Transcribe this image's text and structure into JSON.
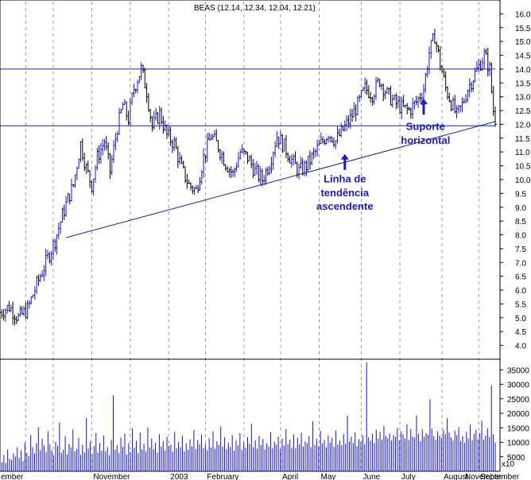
{
  "chart_data": {
    "type": "bar",
    "title": "BEAS (12.14, 12.34, 12.04, 12.21)",
    "price_axis": {
      "ylim": [
        3.5,
        16.5
      ],
      "tick_labels": [
        "4.0",
        "4.5",
        "5.0",
        "5.5",
        "6.0",
        "6.5",
        "7.0",
        "7.5",
        "8.0",
        "8.5",
        "9.0",
        "9.5",
        "10.0",
        "10.5",
        "11.0",
        "11.5",
        "12.0",
        "12.5",
        "13.0",
        "13.5",
        "14.0",
        "14.5",
        "15.0",
        "15.5",
        "16.0"
      ]
    },
    "volume_axis": {
      "ylim": [
        0,
        37000
      ],
      "tick_labels": [
        "5000",
        "10000",
        "15000",
        "20000",
        "25000",
        "30000",
        "35000"
      ],
      "multiplier_label": "x10"
    },
    "x_axis": {
      "xlim": [
        -6,
        264
      ],
      "month_labels": [
        {
          "x": -6,
          "label": "ember"
        },
        {
          "x": 44,
          "label": "November"
        },
        {
          "x": 86,
          "label": "2003"
        },
        {
          "x": 106,
          "label": "February"
        },
        {
          "x": 147,
          "label": "April"
        },
        {
          "x": 168,
          "label": "May"
        },
        {
          "x": 191,
          "label": "June"
        },
        {
          "x": 212,
          "label": "July"
        },
        {
          "x": 235,
          "label": "August"
        },
        {
          "x": 255,
          "label": "September"
        }
      ],
      "right_label": "November",
      "grid_x": [
        8,
        23,
        44,
        65,
        86,
        106,
        127,
        147,
        168,
        191,
        212,
        235,
        255
      ]
    },
    "price_path": [
      [
        -6,
        5.2
      ],
      [
        -1,
        5.4
      ],
      [
        4,
        5.0
      ],
      [
        9,
        5.3
      ],
      [
        14,
        6.2
      ],
      [
        19,
        7.0
      ],
      [
        24,
        7.8
      ],
      [
        28,
        8.7
      ],
      [
        31,
        9.3
      ],
      [
        34,
        9.8
      ],
      [
        38,
        11.3
      ],
      [
        41,
        10.4
      ],
      [
        44,
        9.8
      ],
      [
        47,
        10.8
      ],
      [
        51,
        11.4
      ],
      [
        54,
        10.3
      ],
      [
        58,
        11.9
      ],
      [
        61,
        12.7
      ],
      [
        64,
        12.2
      ],
      [
        67,
        13.3
      ],
      [
        71,
        14.0
      ],
      [
        74,
        13.2
      ],
      [
        77,
        11.9
      ],
      [
        81,
        12.4
      ],
      [
        85,
        11.6
      ],
      [
        89,
        11.3
      ],
      [
        93,
        10.4
      ],
      [
        97,
        9.8
      ],
      [
        101,
        9.6
      ],
      [
        105,
        10.8
      ],
      [
        109,
        11.6
      ],
      [
        113,
        11.2
      ],
      [
        117,
        10.6
      ],
      [
        121,
        10.2
      ],
      [
        125,
        11.0
      ],
      [
        129,
        10.8
      ],
      [
        133,
        10.3
      ],
      [
        137,
        10.0
      ],
      [
        141,
        10.6
      ],
      [
        145,
        11.6
      ],
      [
        149,
        11.2
      ],
      [
        153,
        10.7
      ],
      [
        157,
        10.3
      ],
      [
        161,
        10.5
      ],
      [
        165,
        10.9
      ],
      [
        169,
        11.3
      ],
      [
        173,
        11.7
      ],
      [
        177,
        11.4
      ],
      [
        181,
        11.8
      ],
      [
        185,
        12.2
      ],
      [
        189,
        12.7
      ],
      [
        193,
        13.3
      ],
      [
        197,
        13.1
      ],
      [
        201,
        13.6
      ],
      [
        205,
        13.1
      ],
      [
        209,
        12.8
      ],
      [
        213,
        12.6
      ],
      [
        217,
        12.5
      ],
      [
        221,
        12.8
      ],
      [
        225,
        13.3
      ],
      [
        228,
        14.6
      ],
      [
        231,
        15.2
      ],
      [
        234,
        14.2
      ],
      [
        237,
        13.3
      ],
      [
        240,
        12.8
      ],
      [
        243,
        12.3
      ],
      [
        246,
        12.7
      ],
      [
        249,
        13.3
      ],
      [
        252,
        13.7
      ],
      [
        255,
        14.1
      ],
      [
        258,
        14.5
      ],
      [
        261,
        14.0
      ],
      [
        262,
        13.2
      ],
      [
        263,
        12.5
      ],
      [
        264,
        12.2
      ]
    ],
    "support_line": {
      "x": [
        -6,
        264
      ],
      "y": [
        11.95,
        11.95
      ]
    },
    "resistance_line": {
      "x": [
        -6,
        264
      ],
      "y": [
        14.0,
        14.0
      ]
    },
    "trend_line": {
      "x": [
        30,
        264
      ],
      "y": [
        7.9,
        12.1
      ]
    },
    "annotations": [
      {
        "text": "Suporte",
        "x": 226,
        "y": 11.8
      },
      {
        "text": "horizontal",
        "x": 226,
        "y": 11.3
      },
      {
        "text": "Linha de",
        "x": 182,
        "y": 9.9
      },
      {
        "text": "tendência",
        "x": 182,
        "y": 9.4
      },
      {
        "text": "ascendente",
        "x": 182,
        "y": 8.9
      }
    ],
    "arrows": [
      {
        "x": 225,
        "y_from": 12.35,
        "y_to": 12.9
      },
      {
        "x": 182,
        "y_from": 10.35,
        "y_to": 10.9
      }
    ],
    "volume": [
      4200,
      3100,
      5600,
      2800,
      7500,
      4300,
      3900,
      6200,
      5100,
      8300,
      4600,
      7200,
      3500,
      9800,
      6400,
      5200,
      12500,
      8300,
      6100,
      9700,
      15200,
      7300,
      11200,
      8900,
      6700,
      13800,
      9300,
      7200,
      5400,
      10200,
      8800,
      16800,
      6300,
      7400,
      12100,
      5800,
      9400,
      8200,
      14400,
      6900,
      7700,
      11500,
      5600,
      9200,
      6500,
      18400,
      7800,
      10300,
      5900,
      8700,
      13200,
      6400,
      9800,
      7100,
      12400,
      6800,
      8300,
      5500,
      10800,
      26200,
      7400,
      9100,
      6300,
      11600,
      8400,
      12900,
      5800,
      9700,
      6600,
      14800,
      8100,
      10500,
      6200,
      13300,
      7500,
      9400,
      6800,
      15100,
      8200,
      11300,
      7600,
      9900,
      6400,
      12800,
      8600,
      10400,
      7100,
      11900,
      8800,
      9200,
      6700,
      13600,
      7900,
      10100,
      8300,
      12300,
      6900,
      9600,
      7400,
      11000,
      8600,
      14200,
      7700,
      10800,
      9300,
      12600,
      8000,
      9500,
      7300,
      11400,
      8200,
      13700,
      7800,
      10300,
      9100,
      15400,
      8500,
      11700,
      7600,
      9800,
      8400,
      12500,
      7100,
      10600,
      8900,
      13100,
      7400,
      9900,
      8100,
      11800,
      9500,
      16300,
      8300,
      10700,
      7800,
      12200,
      9000,
      11100,
      7500,
      9700,
      8600,
      13500,
      8000,
      10200,
      9200,
      12000,
      7700,
      11300,
      8800,
      14600,
      9400,
      10900,
      8100,
      12700,
      7900,
      11600,
      9300,
      13300,
      8500,
      10400,
      9700,
      12100,
      8300,
      17200,
      9100,
      11200,
      8700,
      13900,
      9600,
      10800,
      8200,
      12400,
      9900,
      11500,
      8400,
      14100,
      9200,
      10600,
      8900,
      12800,
      9500,
      19200,
      10300,
      11900,
      9800,
      13400,
      8600,
      11100,
      10100,
      12300,
      9300,
      37500,
      11700,
      10500,
      12900,
      9700,
      14300,
      11200,
      13600,
      10900,
      15700,
      12200,
      11400,
      13100,
      10600,
      12500,
      11800,
      14900,
      10700,
      13800,
      12700,
      11300,
      16200,
      10800,
      14600,
      12000,
      11600,
      19300,
      12900,
      10400,
      14500,
      11900,
      13200,
      12600,
      24800,
      14700,
      12100,
      10900,
      13700,
      12300,
      11500,
      14200,
      12800,
      18400,
      13400,
      11700,
      10600,
      13900,
      12500,
      15200,
      10400,
      12100,
      9800,
      13600,
      11300,
      16200,
      10700,
      12900,
      14300,
      11100,
      13200,
      17400,
      10900,
      12300,
      14800,
      11800,
      29600,
      12700,
      9900
    ]
  }
}
